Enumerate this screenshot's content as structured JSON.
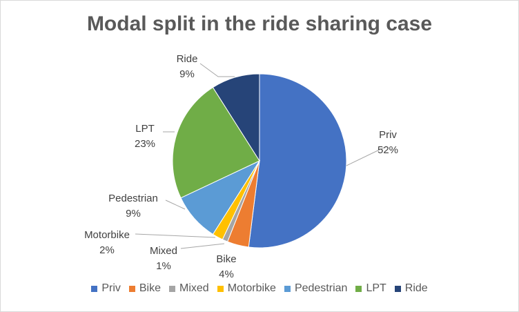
{
  "chart_data": {
    "type": "pie",
    "title": "Modal split in the ride sharing case",
    "slices": [
      {
        "label": "Priv",
        "value": 52,
        "display": "52%",
        "color": "#4472C4"
      },
      {
        "label": "Bike",
        "value": 4,
        "display": "4%",
        "color": "#ED7D31"
      },
      {
        "label": "Mixed",
        "value": 1,
        "display": "1%",
        "color": "#A5A5A5"
      },
      {
        "label": "Motorbike",
        "value": 2,
        "display": "2%",
        "color": "#FFC000"
      },
      {
        "label": "Pedestrian",
        "value": 9,
        "display": "9%",
        "color": "#5B9BD5"
      },
      {
        "label": "LPT",
        "value": 23,
        "display": "23%",
        "color": "#70AD47"
      },
      {
        "label": "Ride",
        "value": 9,
        "display": "9%",
        "color": "#264478"
      }
    ],
    "legend_position": "bottom"
  }
}
